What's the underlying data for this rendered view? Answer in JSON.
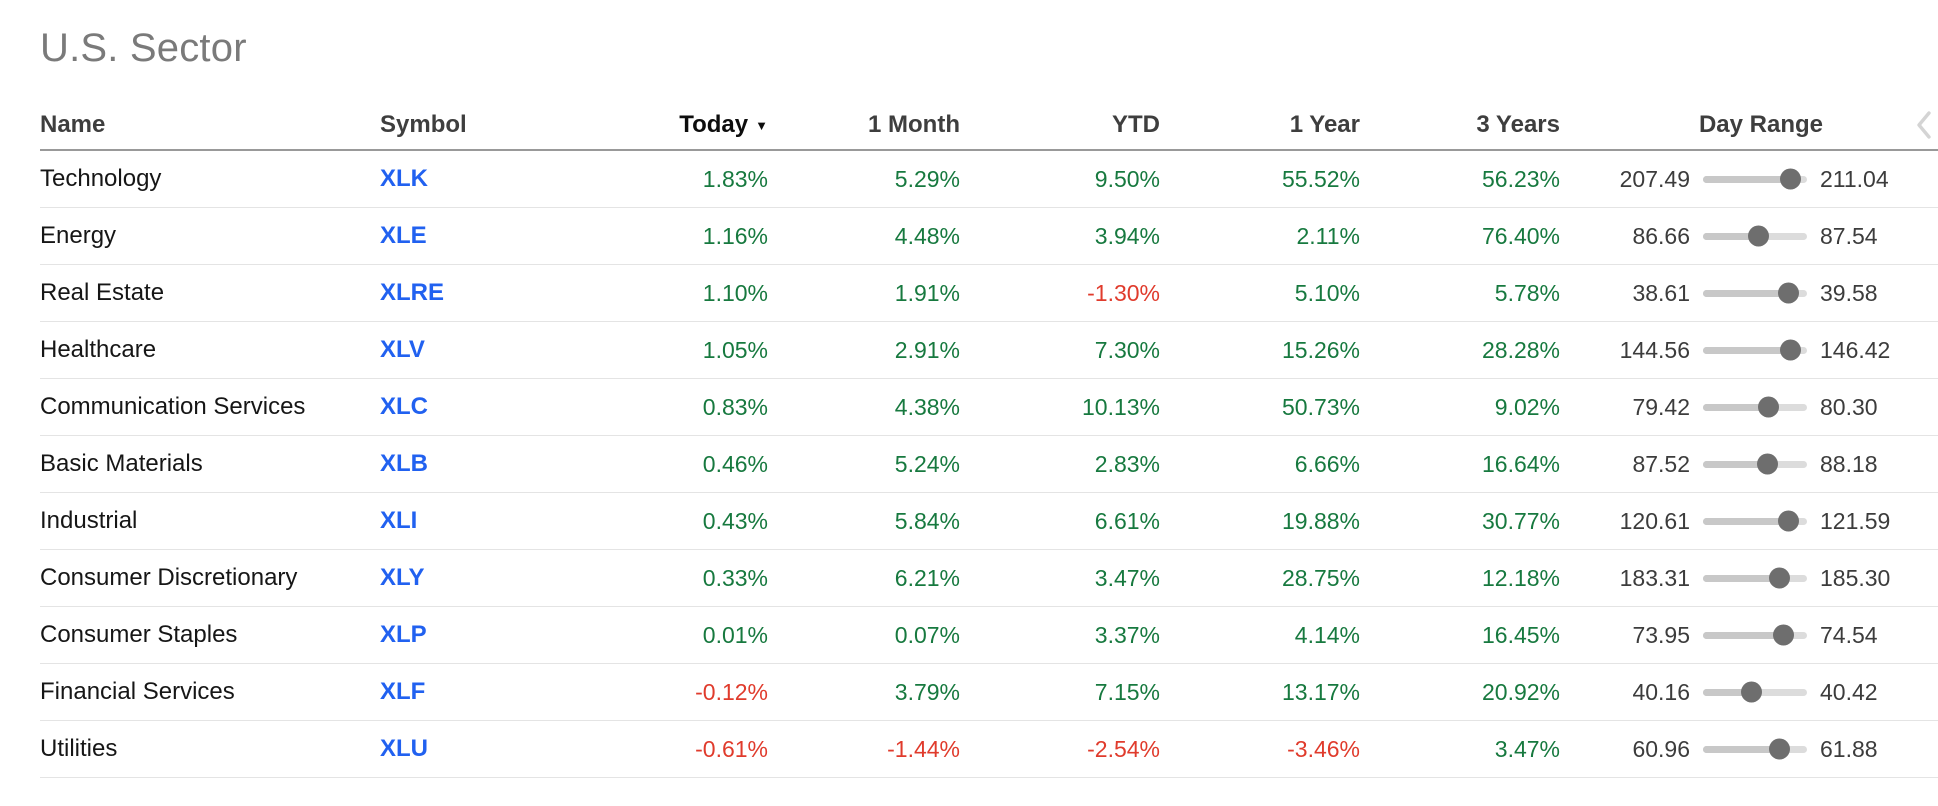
{
  "page": {
    "title": "U.S. Sector"
  },
  "colors": {
    "positive": "#17793f",
    "negative": "#e03b2c",
    "symbol_link": "#2161f0",
    "title_gray": "#7a7a7a",
    "slider_track": "#dcdcdc",
    "slider_thumb": "#6e6e6e"
  },
  "icons": {
    "sort_desc": "▼",
    "collapse_chevron": "chevron-left"
  },
  "table": {
    "columns": [
      "Name",
      "Symbol",
      "Today",
      "1 Month",
      "YTD",
      "1 Year",
      "3 Years",
      "Day Range"
    ],
    "sorted_by": "Today",
    "sort_direction": "desc",
    "rows": [
      {
        "name": "Technology",
        "symbol": "XLK",
        "today": "1.83%",
        "month1": "5.29%",
        "ytd": "9.50%",
        "year1": "55.52%",
        "years3": "56.23%",
        "day_low": "207.49",
        "day_high": "211.04",
        "thumb_pct": 84
      },
      {
        "name": "Energy",
        "symbol": "XLE",
        "today": "1.16%",
        "month1": "4.48%",
        "ytd": "3.94%",
        "year1": "2.11%",
        "years3": "76.40%",
        "day_low": "86.66",
        "day_high": "87.54",
        "thumb_pct": 53
      },
      {
        "name": "Real Estate",
        "symbol": "XLRE",
        "today": "1.10%",
        "month1": "1.91%",
        "ytd": "-1.30%",
        "year1": "5.10%",
        "years3": "5.78%",
        "day_low": "38.61",
        "day_high": "39.58",
        "thumb_pct": 82
      },
      {
        "name": "Healthcare",
        "symbol": "XLV",
        "today": "1.05%",
        "month1": "2.91%",
        "ytd": "7.30%",
        "year1": "15.26%",
        "years3": "28.28%",
        "day_low": "144.56",
        "day_high": "146.42",
        "thumb_pct": 84
      },
      {
        "name": "Communication Services",
        "symbol": "XLC",
        "today": "0.83%",
        "month1": "4.38%",
        "ytd": "10.13%",
        "year1": "50.73%",
        "years3": "9.02%",
        "day_low": "79.42",
        "day_high": "80.30",
        "thumb_pct": 63
      },
      {
        "name": "Basic Materials",
        "symbol": "XLB",
        "today": "0.46%",
        "month1": "5.24%",
        "ytd": "2.83%",
        "year1": "6.66%",
        "years3": "16.64%",
        "day_low": "87.52",
        "day_high": "88.18",
        "thumb_pct": 62
      },
      {
        "name": "Industrial",
        "symbol": "XLI",
        "today": "0.43%",
        "month1": "5.84%",
        "ytd": "6.61%",
        "year1": "19.88%",
        "years3": "30.77%",
        "day_low": "120.61",
        "day_high": "121.59",
        "thumb_pct": 82
      },
      {
        "name": "Consumer Discretionary",
        "symbol": "XLY",
        "today": "0.33%",
        "month1": "6.21%",
        "ytd": "3.47%",
        "year1": "28.75%",
        "years3": "12.18%",
        "day_low": "183.31",
        "day_high": "185.30",
        "thumb_pct": 74
      },
      {
        "name": "Consumer Staples",
        "symbol": "XLP",
        "today": "0.01%",
        "month1": "0.07%",
        "ytd": "3.37%",
        "year1": "4.14%",
        "years3": "16.45%",
        "day_low": "73.95",
        "day_high": "74.54",
        "thumb_pct": 77
      },
      {
        "name": "Financial Services",
        "symbol": "XLF",
        "today": "-0.12%",
        "month1": "3.79%",
        "ytd": "7.15%",
        "year1": "13.17%",
        "years3": "20.92%",
        "day_low": "40.16",
        "day_high": "40.42",
        "thumb_pct": 47
      },
      {
        "name": "Utilities",
        "symbol": "XLU",
        "today": "-0.61%",
        "month1": "-1.44%",
        "ytd": "-2.54%",
        "year1": "-3.46%",
        "years3": "3.47%",
        "day_low": "60.96",
        "day_high": "61.88",
        "thumb_pct": 74
      }
    ]
  }
}
